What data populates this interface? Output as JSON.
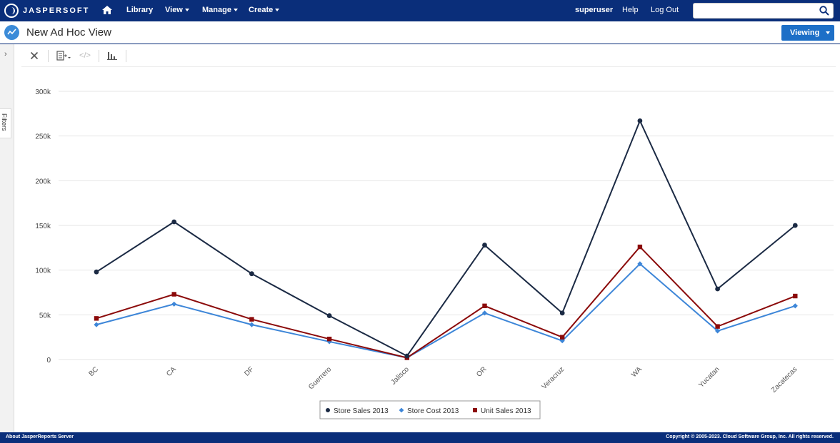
{
  "app": {
    "logo_text": "JASPERSOFT",
    "nav": {
      "library": "Library",
      "view": "View",
      "manage": "Manage",
      "create": "Create"
    },
    "user": "superuser",
    "help": "Help",
    "logout": "Log Out",
    "search_placeholder": ""
  },
  "page": {
    "title": "New Ad Hoc View",
    "viewing_label": "Viewing",
    "filters_label": "Filters"
  },
  "footer": {
    "left": "About JasperReports Server",
    "right": "Copyright © 2005-2023. Cloud Software Group, Inc. All rights reserved."
  },
  "colors": {
    "nav_bg": "#0a2e7a",
    "store_sales": "#1b2a44",
    "store_cost": "#3d86d8",
    "unit_sales": "#8b0a0a"
  },
  "chart_data": {
    "type": "line",
    "categories": [
      "BC",
      "CA",
      "DF",
      "Guerrero",
      "Jalisco",
      "OR",
      "Veracruz",
      "WA",
      "Yucatan",
      "Zacatecas"
    ],
    "y_ticks": [
      "0",
      "50k",
      "100k",
      "150k",
      "200k",
      "250k",
      "300k"
    ],
    "ylim": [
      0,
      300000
    ],
    "grid": true,
    "legend_position": "bottom",
    "series": [
      {
        "name": "Store Sales 2013",
        "marker": "circle",
        "color": "#1b2a44",
        "values": [
          98000,
          154000,
          96000,
          49000,
          4000,
          128000,
          52000,
          267000,
          79000,
          150000
        ]
      },
      {
        "name": "Store Cost 2013",
        "marker": "diamond",
        "color": "#3d86d8",
        "values": [
          39000,
          62000,
          39000,
          20000,
          2000,
          52000,
          21000,
          107000,
          32000,
          60000
        ]
      },
      {
        "name": "Unit Sales 2013",
        "marker": "square",
        "color": "#8b0a0a",
        "values": [
          46000,
          73000,
          45000,
          23000,
          2000,
          60000,
          25000,
          126000,
          37000,
          71000
        ]
      }
    ]
  }
}
